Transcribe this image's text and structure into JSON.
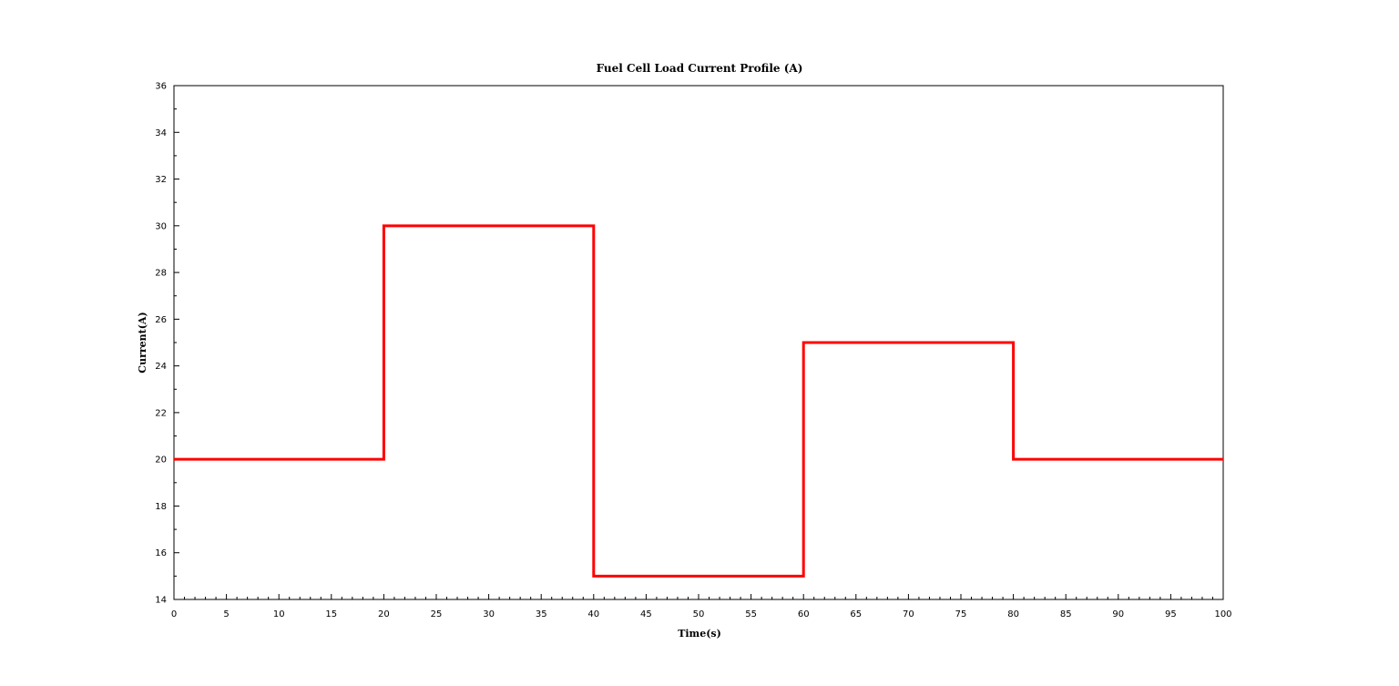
{
  "chart_data": {
    "type": "line",
    "title": "Fuel Cell Load Current Profile (A)",
    "xlabel": "Time(s)",
    "ylabel": "Current(A)",
    "xlim": [
      0,
      100
    ],
    "ylim": [
      14,
      36
    ],
    "x_ticks": [
      0,
      5,
      10,
      15,
      20,
      25,
      30,
      35,
      40,
      45,
      50,
      55,
      60,
      65,
      70,
      75,
      80,
      85,
      90,
      95,
      100
    ],
    "y_ticks": [
      14,
      16,
      18,
      20,
      22,
      24,
      26,
      28,
      30,
      32,
      34,
      36
    ],
    "x_minor_step": 1,
    "y_minor_step": 1,
    "grid": false,
    "legend": "none",
    "series": [
      {
        "color": "#ff0000",
        "x": [
          0,
          20,
          20,
          40,
          40,
          60,
          60,
          80,
          80,
          100
        ],
        "y": [
          20,
          20,
          30,
          30,
          15,
          15,
          25,
          25,
          20,
          20
        ]
      }
    ]
  }
}
